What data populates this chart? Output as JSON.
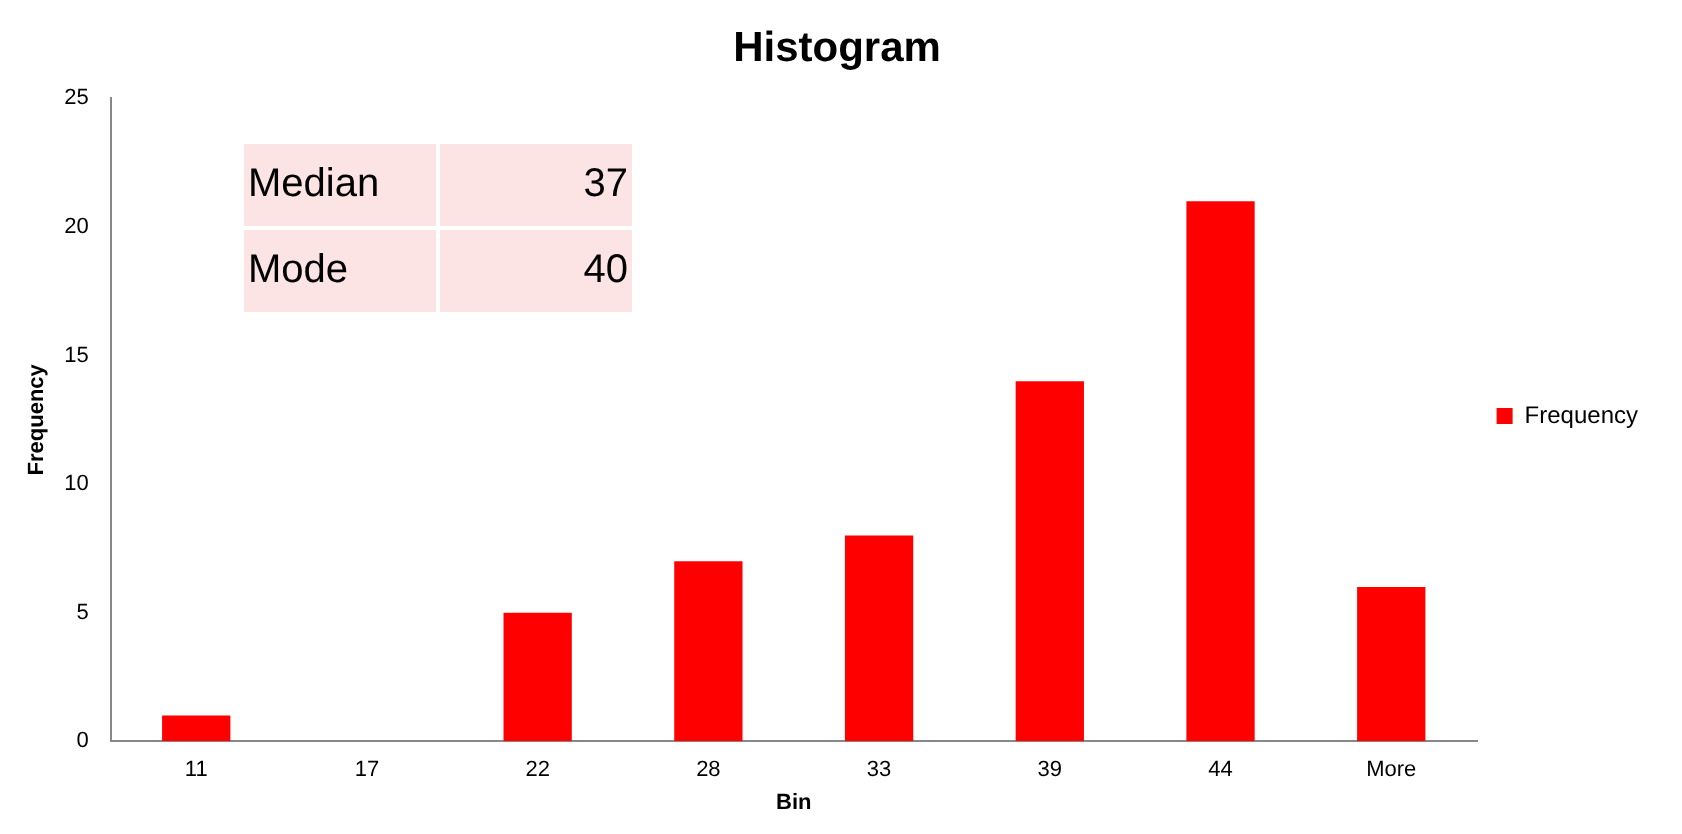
{
  "chart_data": {
    "type": "bar",
    "title": "Histogram",
    "xlabel": "Bin",
    "ylabel": "Frequency",
    "categories": [
      "11",
      "17",
      "22",
      "28",
      "33",
      "39",
      "44",
      "More"
    ],
    "series": [
      {
        "name": "Frequency",
        "color": "#ff0000",
        "values": [
          1,
          0,
          5,
          7,
          8,
          14,
          21,
          6
        ]
      }
    ],
    "ylim": [
      0,
      25
    ],
    "yticks": [
      0,
      5,
      10,
      15,
      20,
      25
    ],
    "grid": false,
    "legend": "right",
    "annotations": [
      "Median",
      "37",
      "Mode",
      "40"
    ]
  }
}
